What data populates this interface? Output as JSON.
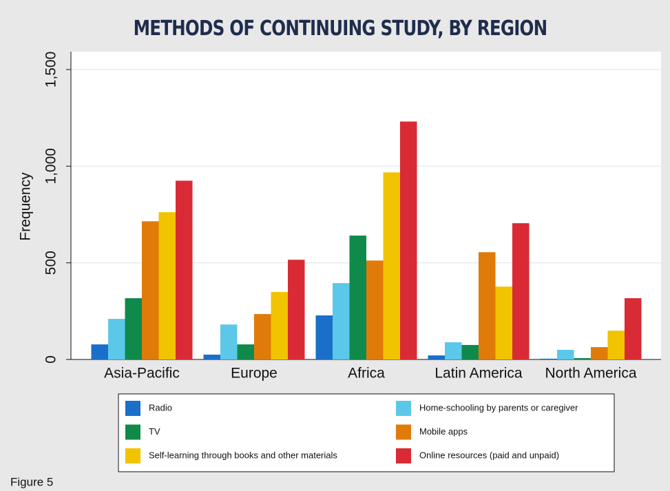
{
  "chart_data": {
    "type": "bar",
    "title": "METHODS OF CONTINUING STUDY, BY REGION",
    "ylabel": "Frequency",
    "caption": "Figure 5",
    "categories": [
      "Asia-Pacific",
      "Europe",
      "Africa",
      "Latin America",
      "North America"
    ],
    "series": [
      {
        "name": "Radio",
        "color": "#1a6fc9",
        "values": [
          78,
          25,
          228,
          21,
          4
        ]
      },
      {
        "name": "Home-schooling by parents or caregiver",
        "color": "#5bc8ea",
        "values": [
          210,
          181,
          395,
          89,
          50
        ]
      },
      {
        "name": "TV",
        "color": "#0f8a4a",
        "values": [
          317,
          78,
          641,
          75,
          7
        ]
      },
      {
        "name": "Mobile apps",
        "color": "#e07b0a",
        "values": [
          715,
          235,
          512,
          555,
          64
        ]
      },
      {
        "name": "Self-learning through books and other materials",
        "color": "#f2c300",
        "values": [
          762,
          349,
          968,
          377,
          149
        ]
      },
      {
        "name": "Online resources (paid and unpaid)",
        "color": "#d92b35",
        "values": [
          925,
          516,
          1231,
          705,
          317
        ]
      }
    ],
    "ylim": [
      0,
      1500
    ],
    "yticks": [
      0,
      500,
      {
        "value": 1000,
        "label": "1,000"
      },
      {
        "value": 1500,
        "label": "1,500"
      }
    ],
    "grid": true
  }
}
